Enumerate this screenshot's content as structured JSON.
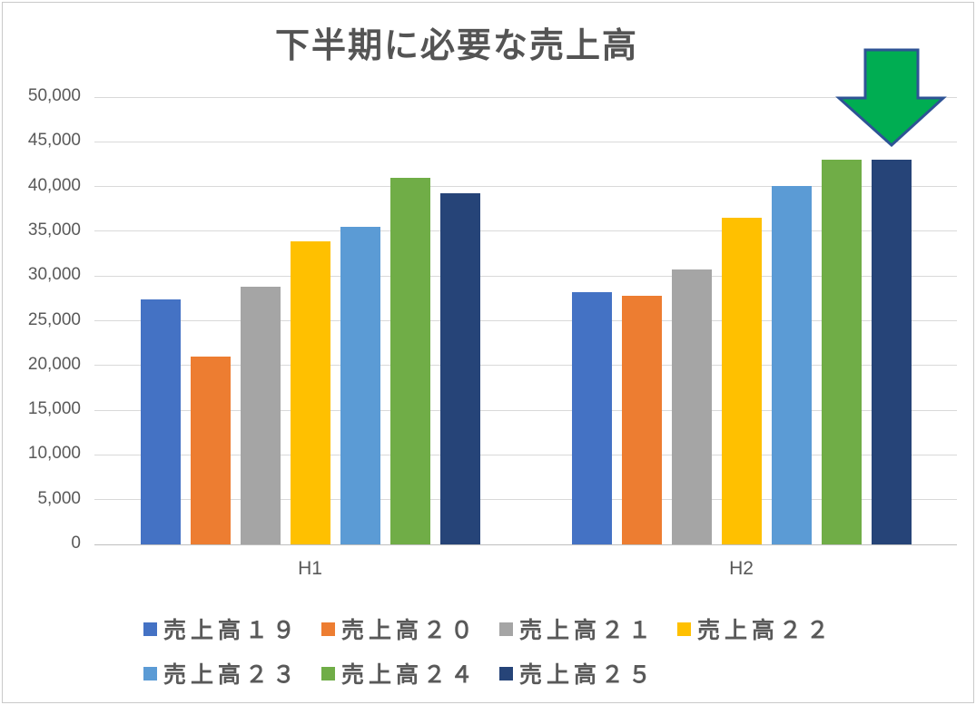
{
  "chart": {
    "title": "下半期に必要な売上高",
    "background_color": "#ffffff",
    "border_color": "#c9c9c9",
    "gridline_color": "#d9d9d9",
    "axis_line_color": "#bfbfbf",
    "text_color": "#595959",
    "title_color": "#545454"
  },
  "chart_data": {
    "type": "bar",
    "title": "下半期に必要な売上高",
    "categories": [
      "H1",
      "H2"
    ],
    "series": [
      {
        "name": "売上高１９",
        "color": "#4472C4",
        "values": [
          27400,
          28200
        ]
      },
      {
        "name": "売上高２０",
        "color": "#ED7D31",
        "values": [
          21000,
          27800
        ]
      },
      {
        "name": "売上高２１",
        "color": "#A5A5A5",
        "values": [
          28800,
          30700
        ]
      },
      {
        "name": "売上高２２",
        "color": "#FFC000",
        "values": [
          33900,
          36500
        ]
      },
      {
        "name": "売上高２３",
        "color": "#5B9BD5",
        "values": [
          35500,
          40100
        ]
      },
      {
        "name": "売上高２４",
        "color": "#70AD47",
        "values": [
          41000,
          43000
        ]
      },
      {
        "name": "売上高２５",
        "color": "#264478",
        "values": [
          39300,
          43000
        ]
      }
    ],
    "xlabel": "",
    "ylabel": "",
    "ylim": [
      0,
      50000
    ],
    "ytick_interval": 5000,
    "ytick_labels": [
      "0",
      "5,000",
      "10,000",
      "15,000",
      "20,000",
      "25,000",
      "30,000",
      "35,000",
      "40,000",
      "45,000",
      "50,000"
    ],
    "grid": true,
    "legend_position": "bottom",
    "legend_rows": [
      4,
      3
    ],
    "annotation": {
      "shape": "down-arrow",
      "fill": "#00AD52",
      "stroke": "#2E5395",
      "target": "売上高２５ H2 bar"
    }
  }
}
